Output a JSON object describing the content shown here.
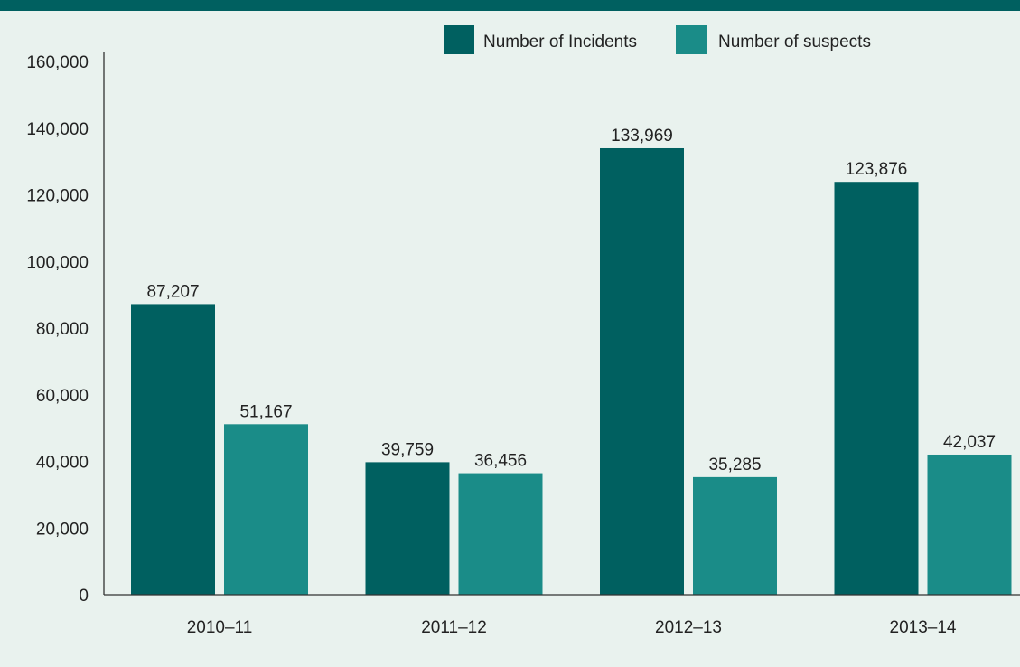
{
  "chart_data": {
    "type": "bar",
    "categories": [
      "2010–11",
      "2011–12",
      "2012–13",
      "2013–14"
    ],
    "series": [
      {
        "name": "Number of Incidents",
        "values": [
          87207,
          39759,
          133969,
          123876
        ],
        "labels": [
          "87,207",
          "39,759",
          "133,969",
          "123,876"
        ],
        "color": "#006060"
      },
      {
        "name": "Number of suspects",
        "values": [
          51167,
          36456,
          35285,
          42037
        ],
        "labels": [
          "51,167",
          "36,456",
          "35,285",
          "42,037"
        ],
        "color": "#1a8c88"
      }
    ],
    "ylim": [
      0,
      160000
    ],
    "yticks": [
      0,
      20000,
      40000,
      60000,
      80000,
      100000,
      120000,
      140000,
      160000
    ],
    "ytick_labels": [
      "0",
      "20,000",
      "40,000",
      "60,000",
      "80,000",
      "100,000",
      "120,000",
      "140,000",
      "160,000"
    ],
    "legend_position": "top-right",
    "grid": false,
    "background_color": "#e9f2ee",
    "header_band_color": "#006060"
  }
}
